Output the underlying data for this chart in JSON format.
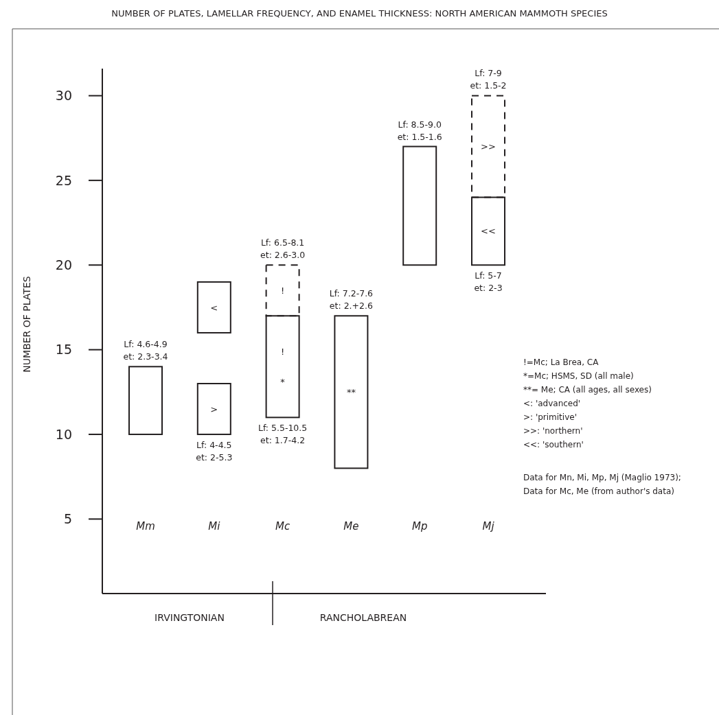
{
  "chart_data": {
    "type": "bar",
    "title": "NUMBER OF PLATES, LAMELLAR FREQUENCY, AND ENAMEL THICKNESS: NORTH AMERICAN MAMMOTH SPECIES",
    "ylabel": "NUMBER OF PLATES",
    "categories": [
      "Mm",
      "Mi",
      "Mc",
      "Me",
      "Mp",
      "Mj"
    ],
    "ylim": [
      0.6,
      31.6
    ],
    "yticks": [
      5,
      10,
      15,
      20,
      25,
      30
    ],
    "series": [
      {
        "color": "#231f20",
        "base": [
          10,
          10,
          11,
          8,
          20,
          20
        ],
        "values": [
          4,
          3,
          6,
          9,
          7,
          4
        ],
        "value_labels": [
          null,
          ">",
          "!\n*",
          "**",
          null,
          "<<"
        ]
      },
      {
        "color": "#231f20",
        "base": [
          null,
          16,
          null,
          null,
          null,
          null
        ],
        "values": [
          null,
          3,
          null,
          null,
          null,
          null
        ],
        "value_labels": [
          null,
          "<",
          null,
          null,
          null,
          null
        ]
      },
      {
        "color": "#231f20",
        "line_style": "dashed",
        "base": [
          null,
          null,
          17,
          null,
          null,
          24
        ],
        "values": [
          null,
          null,
          3,
          null,
          null,
          6
        ],
        "value_labels": [
          null,
          null,
          "!",
          null,
          null,
          ">>"
        ]
      }
    ],
    "annotations": [
      "IRVINGTONIAN",
      "RANCHOLABREAN",
      "!=Mc; La Brea, CA",
      "*=Mc; HSMS, SD (all male)",
      "**= Me; CA (all ages, all sexes)",
      "<: 'advanced'",
      ">: 'primitive'",
      ">>: 'northern'",
      "<<: 'southern'",
      "Data for Mn, Mi, Mp, Mj (Maglio 1973);",
      "Data for Mc, Me (from author's data)",
      {
        "text": "Lf: 4.6-4.9\net: 2.3-3.4",
        "x": "Mm",
        "y": 14
      },
      {
        "text": "Lf: 4-4.5\net: 2-5.3",
        "x": "Mi",
        "y": 10
      },
      {
        "text": "Lf: 6.5-8.1\net: 2.6-3.0",
        "x": "Mc",
        "y": 20
      },
      {
        "text": "Lf: 5.5-10.5\net: 1.7-4.2",
        "x": "Mc",
        "y": 11
      },
      {
        "text": "Lf: 7.2-7.6\net: 2.+2.6",
        "x": "Me",
        "y": 17
      },
      {
        "text": "Lf: 8.5-9.0\net: 1.5-1.6",
        "x": "Mp",
        "y": 27
      },
      {
        "text": "Lf: 7-9\net: 1.5-2",
        "x": "Mj",
        "y": 30
      },
      {
        "text": "Lf: 5-7\net: 2-3",
        "x": "Mj",
        "y": 20
      }
    ]
  }
}
